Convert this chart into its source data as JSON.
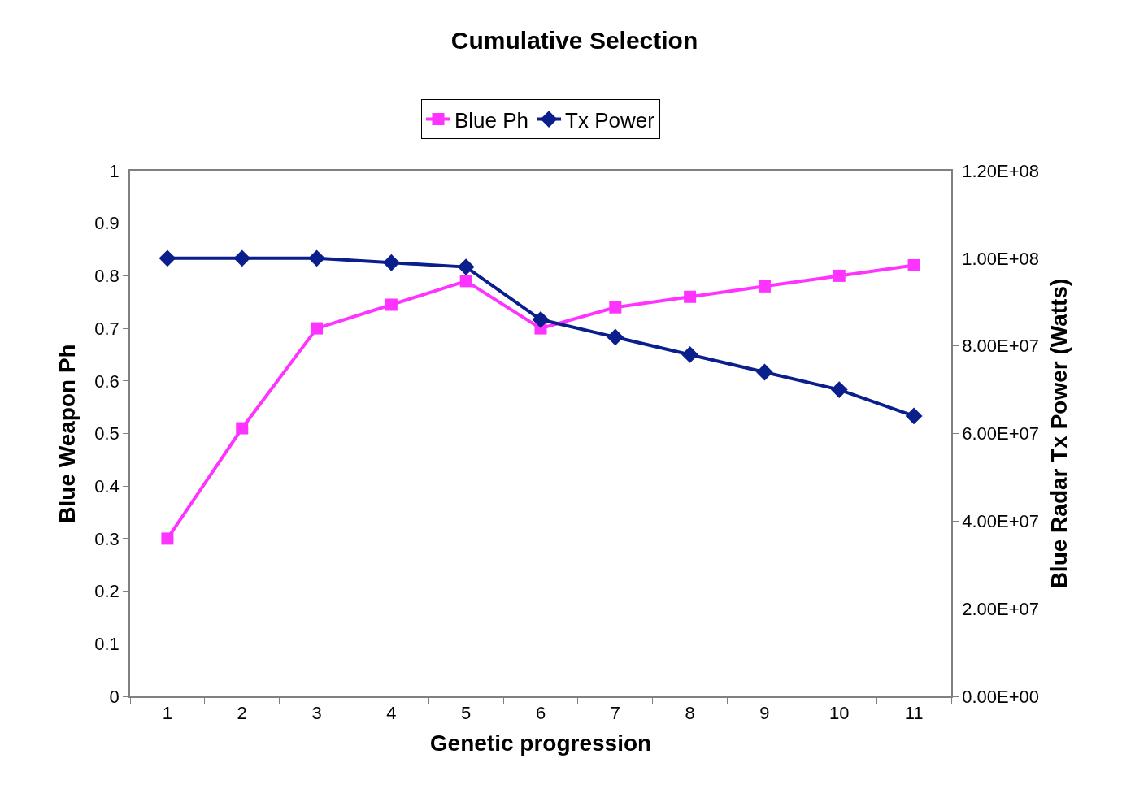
{
  "chart_data": {
    "type": "line",
    "title": "Cumulative Selection",
    "xlabel": "Genetic progression",
    "ylabel": "Blue Weapon Ph",
    "y2label": "Blue Radar Tx Power (Watts)",
    "categories": [
      "1",
      "2",
      "3",
      "4",
      "5",
      "6",
      "7",
      "8",
      "9",
      "10",
      "11"
    ],
    "series": [
      {
        "name": "Blue Ph",
        "color": "#ff33ff",
        "marker": "square",
        "values": [
          0.3,
          0.51,
          0.7,
          0.745,
          0.79,
          0.7,
          0.74,
          0.76,
          0.78,
          0.8,
          0.82
        ]
      },
      {
        "name": "Tx Power",
        "color": "#0a1e8c",
        "marker": "diamond",
        "axis": "y2",
        "values": [
          100000000.0,
          100000000.0,
          100000000.0,
          99000000.0,
          98000000.0,
          86000000.0,
          82000000.0,
          78000000.0,
          74000000.0,
          70000000.0,
          64000000.0
        ]
      }
    ],
    "ylim": [
      0,
      1
    ],
    "yticks": [
      0,
      0.1,
      0.2,
      0.3,
      0.4,
      0.5,
      0.6,
      0.7,
      0.8,
      0.9,
      1
    ],
    "y2lim": [
      0,
      120000000
    ],
    "y2ticks": [
      {
        "value": 0,
        "label": "0.00E+00"
      },
      {
        "value": 20000000,
        "label": "2.00E+07"
      },
      {
        "value": 40000000,
        "label": "4.00E+07"
      },
      {
        "value": 60000000,
        "label": "6.00E+07"
      },
      {
        "value": 80000000,
        "label": "8.00E+07"
      },
      {
        "value": 100000000,
        "label": "1.00E+08"
      },
      {
        "value": 120000000,
        "label": "1.20E+08"
      }
    ],
    "legend": "top",
    "line_style": "solid"
  }
}
